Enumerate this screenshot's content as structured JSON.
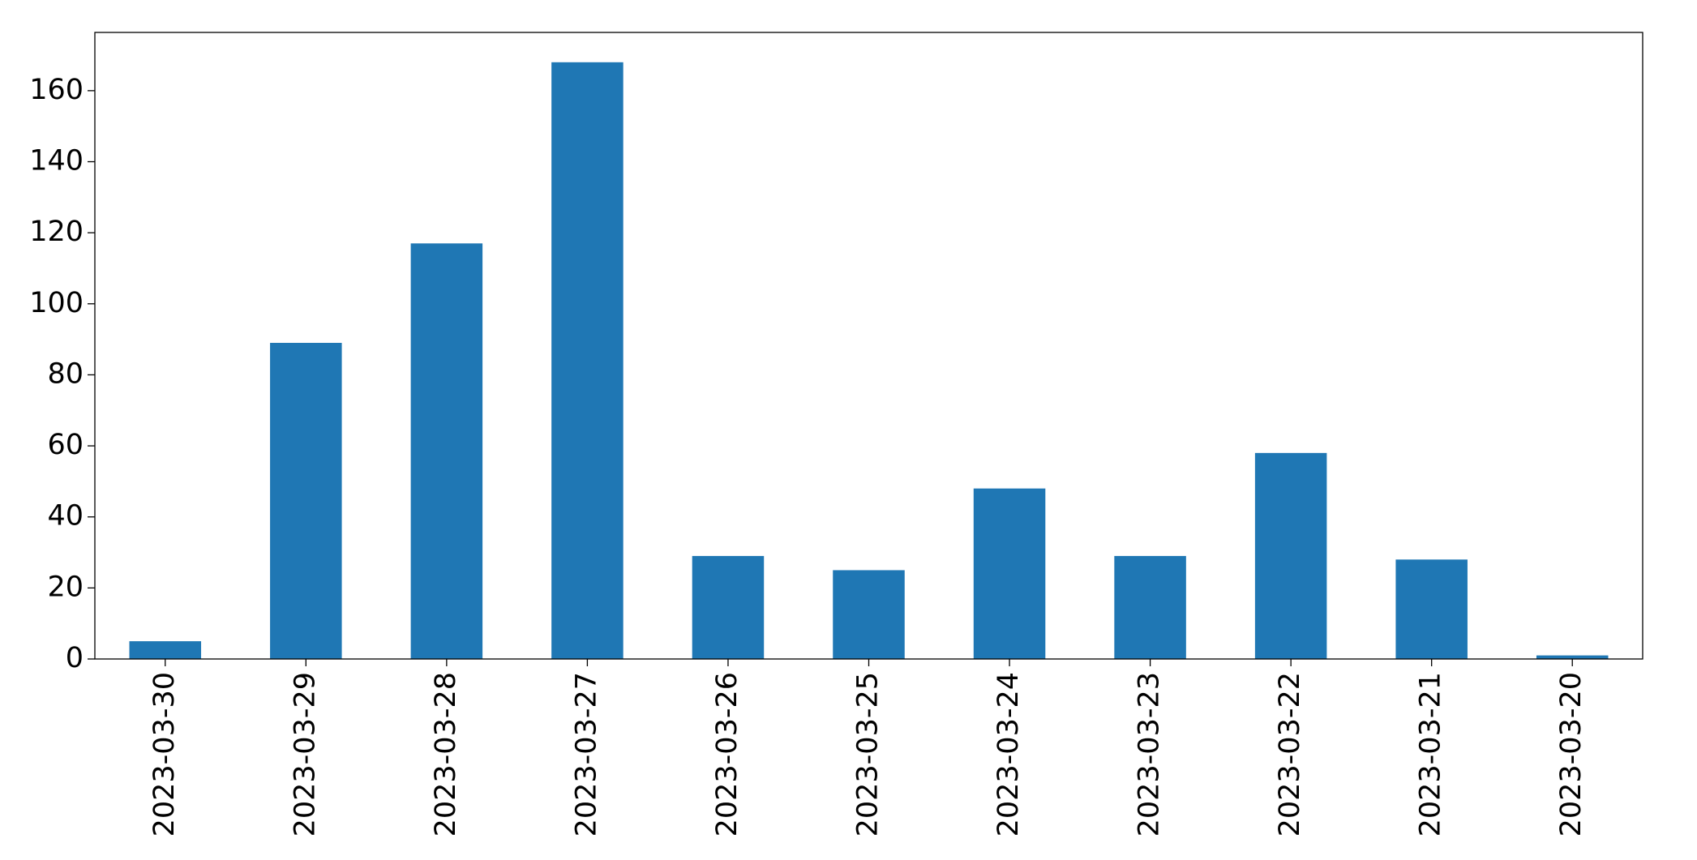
{
  "chart_data": {
    "type": "bar",
    "categories": [
      "2023-03-30",
      "2023-03-29",
      "2023-03-28",
      "2023-03-27",
      "2023-03-26",
      "2023-03-25",
      "2023-03-24",
      "2023-03-23",
      "2023-03-22",
      "2023-03-21",
      "2023-03-20"
    ],
    "values": [
      5,
      89,
      117,
      168,
      29,
      25,
      48,
      29,
      58,
      28,
      1
    ],
    "color": "#1f77b4",
    "ylim": [
      0,
      176.4
    ],
    "yticks": [
      0,
      20,
      40,
      60,
      80,
      100,
      120,
      140,
      160
    ],
    "grid": false
  }
}
